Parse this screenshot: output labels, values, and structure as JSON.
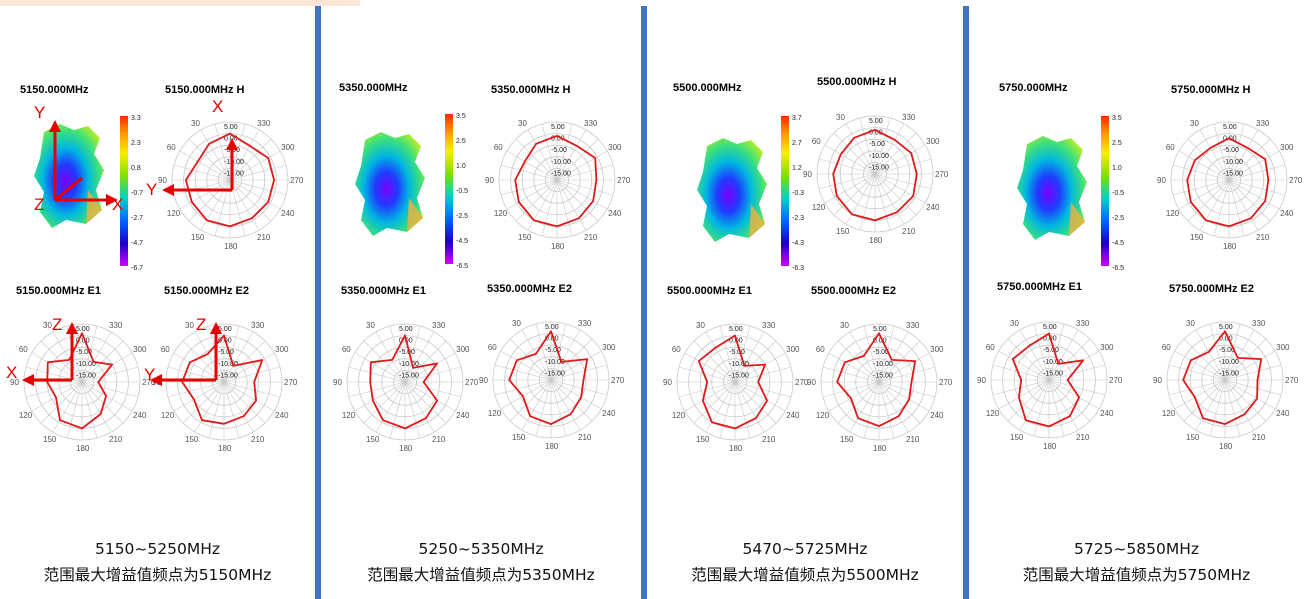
{
  "colors": {
    "divider": "#4472c4",
    "trace": "#e0191b",
    "grid": "#c8c8c8",
    "axis_arrow": "#e60000",
    "band_tag": "#fbe5d6"
  },
  "angle_labels": [
    "0.00",
    "30",
    "60",
    "90",
    "120",
    "150",
    "180",
    "210",
    "240",
    "270",
    "300",
    "330"
  ],
  "ring_labels": [
    "5.00",
    "0.00",
    "-5.00",
    "-10.00",
    "-15.00"
  ],
  "panels": [
    {
      "freq_label": "5150.000MHz",
      "h_label": "5150.000MHz  H",
      "e1_label": "5150.000MHz  E1",
      "e2_label": "5150.000MHz  E2",
      "scale": [
        "3.3",
        "2.3",
        "0.8",
        "-0.7",
        "-2.7",
        "-4.7",
        "-6.7"
      ],
      "range": "5150~5250MHz",
      "description": "范围最大增益值频点为5150MHz",
      "axes": {
        "h": [
          "X",
          "Y"
        ],
        "e1": [
          "Z",
          "X"
        ],
        "e2": [
          "Z",
          "Y"
        ],
        "model": [
          "Y",
          "X",
          "Z"
        ]
      }
    },
    {
      "freq_label": "5350.000MHz",
      "h_label": "5350.000MHz  H",
      "e1_label": "5350.000MHz  E1",
      "e2_label": "5350.000MHz  E2",
      "scale": [
        "3.5",
        "2.5",
        "1.0",
        "-0.5",
        "-2.5",
        "-4.5",
        "-6.5"
      ],
      "range": "5250~5350MHz",
      "description": "范围最大增益值频点为5350MHz"
    },
    {
      "freq_label": "5500.000MHz",
      "h_label": "5500.000MHz  H",
      "e1_label": "5500.000MHz  E1",
      "e2_label": "5500.000MHz  E2",
      "scale": [
        "3.7",
        "2.7",
        "1.2",
        "-0.3",
        "-2.3",
        "-4.3",
        "-6.3"
      ],
      "range": "5470~5725MHz",
      "description": "范围最大增益值频点为5500MHz"
    },
    {
      "freq_label": "5750.000MHz",
      "h_label": "5750.000MHz  H",
      "e1_label": "5750.000MHz  E1",
      "e2_label": "5750.000MHz  E2",
      "scale": [
        "3.5",
        "2.5",
        "1.0",
        "-0.5",
        "-2.5",
        "-4.5",
        "-6.5"
      ],
      "range": "5725~5850MHz",
      "description": "范围最大增益值频点为5750MHz"
    }
  ],
  "chart_data": {
    "type": "polar",
    "r_ticks": [
      5,
      0,
      -5,
      -10,
      -15
    ],
    "angle_ticks": [
      0,
      30,
      60,
      90,
      120,
      150,
      180,
      210,
      240,
      270,
      300,
      330
    ],
    "charts": [
      {
        "name": "5150.000MHz  H",
        "series": [
          {
            "values": [
              0,
              -2,
              -4,
              -1,
              -1,
              0,
              0,
              -1,
              -1,
              -1,
              -1,
              -3
            ]
          }
        ]
      },
      {
        "name": "5150.000MHz  E1",
        "series": [
          {
            "values": [
              1,
              -9,
              -3,
              -5,
              -7,
              -1,
              0,
              -4,
              -8,
              -13,
              -5,
              -10
            ]
          }
        ]
      },
      {
        "name": "5150.000MHz  E2",
        "series": [
          {
            "values": [
              0,
              -6,
              -3,
              -2,
              -5,
              -1,
              -2,
              -3,
              -4,
              -7,
              -1,
              -12
            ]
          }
        ]
      },
      {
        "name": "5350.000MHz  H",
        "series": [
          {
            "values": [
              -1,
              -2,
              -4,
              -2,
              -1,
              0,
              0,
              -1,
              -2,
              -3,
              -1,
              -3
            ]
          }
        ]
      },
      {
        "name": "5350.000MHz  E1",
        "series": [
          {
            "values": [
              0,
              -9,
              -3,
              -5,
              -4,
              -1,
              0,
              -2,
              -4,
              -12,
              -4,
              -13
            ]
          }
        ]
      },
      {
        "name": "5350.000MHz  E2",
        "series": [
          {
            "values": [
              1,
              -7,
              -3,
              -2,
              -6,
              -2,
              -1,
              -3,
              -5,
              -6,
              -2,
              -11
            ]
          }
        ]
      },
      {
        "name": "5500.000MHz  H",
        "series": [
          {
            "values": [
              -1,
              -2,
              -3,
              -2,
              -1,
              0,
              0,
              -1,
              -1,
              -2,
              -2,
              -3
            ]
          }
        ]
      },
      {
        "name": "5500.000MHz  E1",
        "series": [
          {
            "values": [
              0,
              -3,
              -2,
              -8,
              -4,
              0,
              0,
              -2,
              -4,
              -10,
              -5,
              -12
            ]
          }
        ]
      },
      {
        "name": "5500.000MHz  E2",
        "series": [
          {
            "values": [
              1,
              -7,
              -3,
              -2,
              -6,
              -2,
              -1,
              -3,
              -5,
              -6,
              -2,
              -9
            ]
          }
        ]
      },
      {
        "name": "5750.000MHz  H",
        "series": [
          {
            "values": [
              -2,
              -4,
              -3,
              -2,
              -1,
              0,
              0,
              -1,
              -2,
              -3,
              -2,
              -4
            ]
          }
        ]
      },
      {
        "name": "5750.000MHz  E1",
        "series": [
          {
            "values": [
              0,
              -3,
              -2,
              -8,
              -5,
              0,
              0,
              -2,
              -5,
              -12,
              -3,
              -12
            ]
          }
        ]
      },
      {
        "name": "5750.000MHz  E2",
        "series": [
          {
            "values": [
              1,
              -6,
              -3,
              -2,
              -5,
              -1,
              -1,
              -3,
              -4,
              -6,
              -2,
              -9
            ]
          }
        ]
      }
    ]
  }
}
